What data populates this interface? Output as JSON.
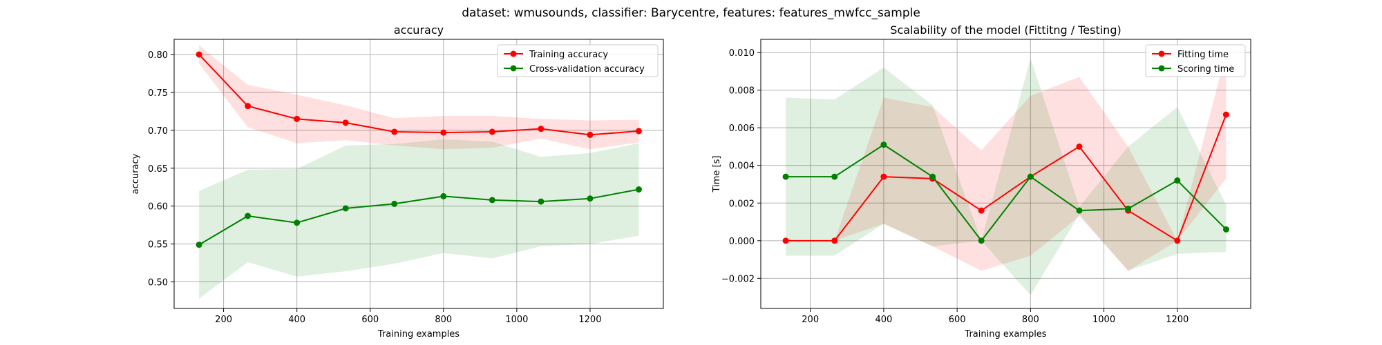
{
  "figure": {
    "suptitle": "dataset: wmusounds, classifier: Barycentre, features: features_mwfcc_sample"
  },
  "colors": {
    "red": "#ff0000",
    "green": "#008000",
    "grid": "#b0b0b0",
    "red_band": "#ff0000",
    "green_band": "#008000"
  },
  "chart_data": [
    {
      "type": "line",
      "title": "accuracy",
      "xlabel": "Training examples",
      "ylabel": "accuracy",
      "xlim": [
        65,
        1400
      ],
      "ylim": [
        0.465,
        0.82
      ],
      "xticks": [
        200,
        400,
        600,
        800,
        1000,
        1200
      ],
      "yticks": [
        0.5,
        0.55,
        0.6,
        0.65,
        0.7,
        0.75,
        0.8
      ],
      "ytick_decimals": 2,
      "grid": true,
      "legend_position": "top-right",
      "x": [
        133,
        266,
        400,
        533,
        666,
        800,
        933,
        1066,
        1200,
        1333
      ],
      "series": [
        {
          "name": "Training accuracy",
          "color": "red",
          "values": [
            0.8,
            0.732,
            0.715,
            0.71,
            0.698,
            0.697,
            0.698,
            0.702,
            0.694,
            0.699
          ],
          "band_lower": [
            0.788,
            0.704,
            0.683,
            0.687,
            0.68,
            0.675,
            0.677,
            0.689,
            0.675,
            0.684
          ],
          "band_upper": [
            0.812,
            0.76,
            0.747,
            0.733,
            0.716,
            0.719,
            0.719,
            0.715,
            0.713,
            0.714
          ]
        },
        {
          "name": "Cross-validation accuracy",
          "color": "green",
          "values": [
            0.549,
            0.587,
            0.578,
            0.597,
            0.603,
            0.613,
            0.608,
            0.606,
            0.61,
            0.622
          ],
          "band_lower": [
            0.478,
            0.526,
            0.507,
            0.514,
            0.524,
            0.538,
            0.531,
            0.547,
            0.55,
            0.561
          ],
          "band_upper": [
            0.62,
            0.648,
            0.649,
            0.68,
            0.682,
            0.688,
            0.685,
            0.665,
            0.67,
            0.683
          ]
        }
      ]
    },
    {
      "type": "line",
      "title": "Scalability of the model (Fittitng / Testing)",
      "xlabel": "Training examples",
      "ylabel": "Time [s]",
      "xlim": [
        65,
        1400
      ],
      "ylim": [
        -0.0036,
        0.0107
      ],
      "xticks": [
        200,
        400,
        600,
        800,
        1000,
        1200
      ],
      "yticks": [
        -0.002,
        0.0,
        0.002,
        0.004,
        0.006,
        0.008,
        0.01
      ],
      "ytick_decimals": 3,
      "grid": true,
      "legend_position": "top-right",
      "x": [
        133,
        266,
        400,
        533,
        666,
        800,
        933,
        1066,
        1200,
        1333
      ],
      "series": [
        {
          "name": "Fitting time",
          "color": "red",
          "values": [
            0.0,
            0.0,
            0.0034,
            0.0033,
            0.0016,
            0.0034,
            0.005,
            0.0016,
            0.0,
            0.0067
          ],
          "band_lower": [
            0.0,
            0.0,
            0.0009,
            -0.0003,
            -0.0016,
            -0.0008,
            0.0013,
            -0.0016,
            0.0,
            0.0033
          ],
          "band_upper": [
            0.0,
            0.0,
            0.0076,
            0.0071,
            0.0048,
            0.0077,
            0.0087,
            0.005,
            0.0,
            0.01
          ]
        },
        {
          "name": "Scoring time",
          "color": "green",
          "values": [
            0.0034,
            0.0034,
            0.0051,
            0.0034,
            0.0,
            0.0034,
            0.0016,
            0.0017,
            0.0032,
            0.0006
          ],
          "band_lower": [
            -0.0008,
            -0.0008,
            0.0009,
            -0.0003,
            0.0,
            -0.0029,
            0.0014,
            -0.0016,
            -0.0007,
            -0.0006
          ],
          "band_upper": [
            0.0076,
            0.0075,
            0.0092,
            0.0072,
            0.0,
            0.0097,
            0.0018,
            0.005,
            0.0071,
            0.0019
          ]
        }
      ]
    }
  ]
}
